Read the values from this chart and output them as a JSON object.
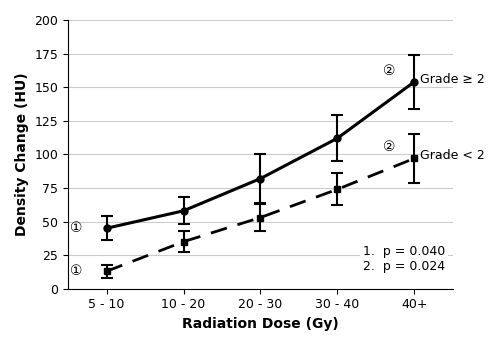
{
  "x_positions": [
    1,
    2,
    3,
    4,
    5
  ],
  "x_labels": [
    "5 - 10",
    "10 - 20",
    "20 - 30",
    "30 - 40",
    "40+"
  ],
  "grade_ge2_means": [
    45,
    58,
    82,
    112,
    154
  ],
  "grade_ge2_se": [
    9,
    10,
    18,
    17,
    20
  ],
  "grade_lt2_means": [
    13,
    35,
    53,
    74,
    97
  ],
  "grade_lt2_se": [
    5,
    8,
    10,
    12,
    18
  ],
  "ylabel": "Density Change (HU)",
  "xlabel": "Radiation Dose (Gy)",
  "ylim": [
    0,
    200
  ],
  "yticks": [
    0,
    25,
    50,
    75,
    100,
    125,
    150,
    175,
    200
  ],
  "annotation_text": "1.  p = 0.040\n2.  p = 0.024",
  "grade_ge2_label": "Grade ≥ 2",
  "grade_lt2_label": "Grade < 2",
  "circle1_label": "①",
  "circle2_label": "②",
  "background_color": "#ffffff",
  "line_color": "#000000"
}
